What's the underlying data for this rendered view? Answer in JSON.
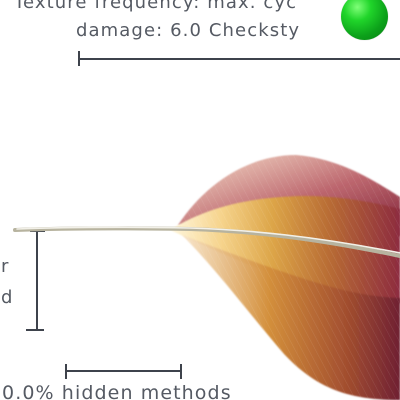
{
  "annotations": {
    "top_line_1": "Texture frequency: max. cyc",
    "top_line_2": "damage: 6.0 Checksty",
    "left_line_1": "r",
    "left_line_2": "d",
    "bottom_line": "0.0% hidden methods"
  },
  "marker": {
    "color": "#18c928",
    "icon": "green-dot-icon"
  },
  "colors": {
    "feather_gold": "#d99f3d",
    "feather_maroon": "#8d2b3f",
    "text_gray": "#555a63"
  }
}
